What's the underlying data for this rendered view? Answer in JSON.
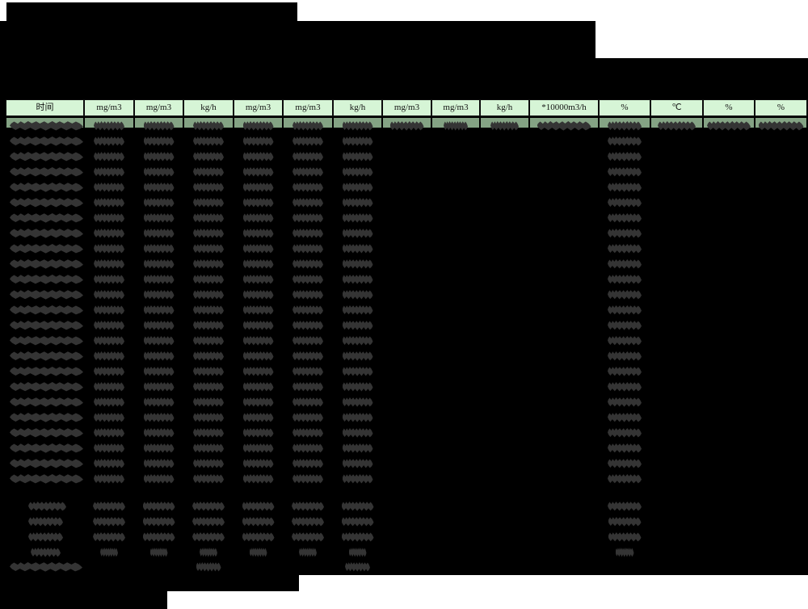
{
  "table": {
    "header_units": [
      "时间",
      "mg/m3",
      "mg/m3",
      "kg/h",
      "mg/m3",
      "mg/m3",
      "kg/h",
      "mg/m3",
      "mg/m3",
      "kg/h",
      "*10000m3/h",
      "%",
      "℃",
      "%",
      "%"
    ]
  },
  "colors": {
    "page_bg": "#ffffff",
    "panel": "#000000",
    "header_bg": "#d6f5d6",
    "row_highlight": "#84a384",
    "blob": "#343434",
    "header_text": "#141414"
  }
}
